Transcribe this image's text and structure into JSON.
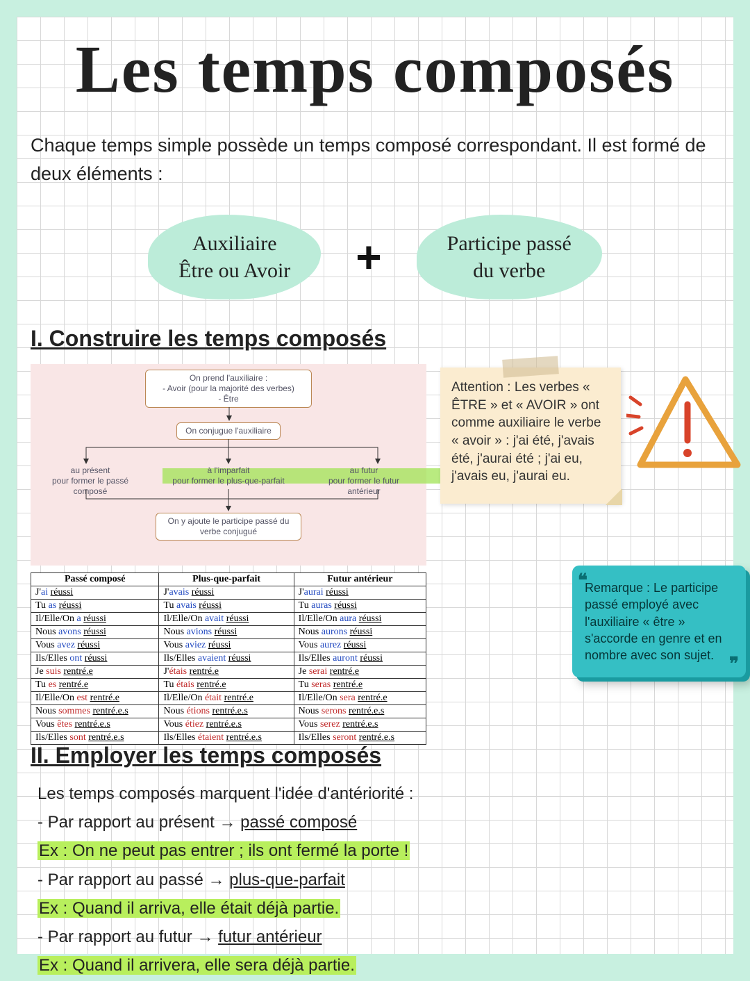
{
  "title": "Les temps composés",
  "intro": "Chaque temps simple possède un temps composé correspondant. Il est formé de deux éléments :",
  "formula": {
    "left_top": "Auxiliaire",
    "left_bottom": "Être ou Avoir",
    "plus": "+",
    "right_top": "Participe passé",
    "right_bottom": "du verbe"
  },
  "section1": "I. Construire les temps composés",
  "section2": "II. Employer les temps composés",
  "diagram": {
    "top_lines": [
      "On prend l'auxiliaire :",
      "- Avoir (pour la majorité des verbes)",
      "- Être"
    ],
    "mid": "On conjugue l'auxiliaire",
    "leaf1a": "au présent",
    "leaf1b": "pour former le passé composé",
    "leaf2a": "à l'imparfait",
    "leaf2b": "pour former le plus-que-parfait",
    "leaf3a": "au futur",
    "leaf3b": "pour former le futur antérieur",
    "bottom_lines": [
      "On y ajoute le participe passé du",
      "verbe conjugué"
    ]
  },
  "table": {
    "headers": [
      "Passé composé",
      "Plus-que-parfait",
      "Futur antérieur"
    ],
    "rows": [
      [
        [
          "J'",
          "ai",
          " réussi"
        ],
        [
          "J'",
          "avais",
          " réussi"
        ],
        [
          "J'",
          "aurai",
          " réussi"
        ]
      ],
      [
        [
          "Tu ",
          "as",
          " réussi"
        ],
        [
          "Tu ",
          "avais",
          " réussi"
        ],
        [
          "Tu ",
          "auras",
          " réussi"
        ]
      ],
      [
        [
          "Il/Elle/On ",
          "a",
          " réussi"
        ],
        [
          "Il/Elle/On ",
          "avait",
          " réussi"
        ],
        [
          "Il/Elle/On ",
          "aura",
          " réussi"
        ]
      ],
      [
        [
          "Nous ",
          "avons",
          " réussi"
        ],
        [
          "Nous ",
          "avions",
          " réussi"
        ],
        [
          "Nous ",
          "aurons",
          " réussi"
        ]
      ],
      [
        [
          "Vous ",
          "avez",
          " réussi"
        ],
        [
          "Vous ",
          "aviez",
          " réussi"
        ],
        [
          "Vous ",
          "aurez",
          " réussi"
        ]
      ],
      [
        [
          "Ils/Elles ",
          "ont",
          " réussi"
        ],
        [
          "Ils/Elles ",
          "avaient",
          " réussi"
        ],
        [
          "Ils/Elles ",
          "auront",
          " réussi"
        ]
      ],
      [
        [
          "Je ",
          "suis",
          " rentré.e"
        ],
        [
          "J'",
          "étais",
          " rentré.e"
        ],
        [
          "Je ",
          "serai",
          " rentré.e"
        ]
      ],
      [
        [
          "Tu ",
          "es",
          " rentré.e"
        ],
        [
          "Tu ",
          "étais",
          " rentré.e"
        ],
        [
          "Tu ",
          "seras",
          " rentré.e"
        ]
      ],
      [
        [
          "Il/Elle/On ",
          "est",
          " rentré.e"
        ],
        [
          "Il/Elle/On ",
          "était",
          " rentré.e"
        ],
        [
          "Il/Elle/On ",
          "sera",
          " rentré.e"
        ]
      ],
      [
        [
          "Nous ",
          "sommes",
          " rentré.e.s"
        ],
        [
          "Nous ",
          "étions",
          " rentré.e.s"
        ],
        [
          "Nous ",
          "serons",
          " rentré.e.s"
        ]
      ],
      [
        [
          "Vous ",
          "êtes",
          " rentré.e.s"
        ],
        [
          "Vous ",
          "étiez",
          " rentré.e.s"
        ],
        [
          "Vous ",
          "serez",
          " rentré.e.s"
        ]
      ],
      [
        [
          "Ils/Elles ",
          "sont",
          " rentré.e.s"
        ],
        [
          "Ils/Elles ",
          "étaient",
          " rentré.e.s"
        ],
        [
          "Ils/Elles ",
          "seront",
          " rentré.e.s"
        ]
      ]
    ],
    "aux_color_rows_blue": 6
  },
  "sticky": "Attention : Les verbes « ÊTRE » et « AVOIR » ont comme auxiliaire le verbe « avoir » : j'ai été, j'avais été, j'aurai été ; j'ai eu, j'avais eu, j'aurai eu.",
  "remark": "Remarque : Le participe passé employé avec l'auxiliaire « être » s'accorde en genre et en nombre avec son sujet.",
  "usage": {
    "lead": "Les temps composés marquent l'idée d'antériorité :",
    "items": [
      {
        "rule": "- Par rapport au présent → ",
        "tense": "passé composé",
        "ex": "Ex : On ne peut pas entrer ; ils ont fermé la porte !"
      },
      {
        "rule": "- Par rapport au passé → ",
        "tense": "plus-que-parfait",
        "ex": "Ex : Quand il arriva, elle était déjà partie."
      },
      {
        "rule": "- Par rapport au futur → ",
        "tense": "futur antérieur",
        "ex": "Ex : Quand il arrivera, elle sera déjà partie."
      }
    ]
  },
  "colors": {
    "page_bg": "#c8f0e0",
    "blob": "#bcecd9",
    "diagram_bg": "#f9e6e6",
    "highlight": "#b8ef5d",
    "sticky": "#fbecd0",
    "remark": "#35bfc4",
    "warn_stroke": "#e8a23c",
    "warn_mark": "#d8432a"
  }
}
